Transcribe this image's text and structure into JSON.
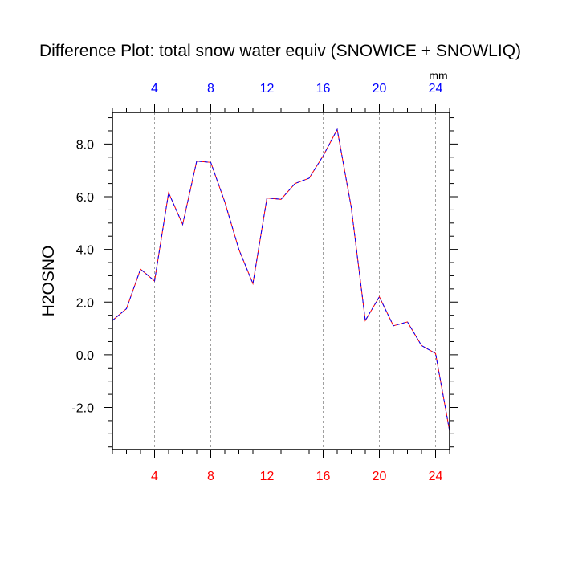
{
  "chart_data": {
    "type": "line",
    "title": "Difference Plot: total snow water equiv (SNOWICE + SNOWLIQ)",
    "xlabel": "",
    "ylabel": "H2OSNO",
    "units": "mm",
    "xlim": [
      1,
      25
    ],
    "ylim": [
      -3.6,
      9.2
    ],
    "x_ticks": [
      4,
      8,
      12,
      16,
      20,
      24
    ],
    "x_tick_labels": [
      "4",
      "8",
      "12",
      "16",
      "20",
      "24"
    ],
    "y_ticks": [
      -2,
      0,
      2,
      4,
      6,
      8
    ],
    "y_tick_labels": [
      "-2.0",
      "0.0",
      "2.0",
      "4.0",
      "6.0",
      "8.0"
    ],
    "grid": "vertical-dashed",
    "colors": {
      "top_ticks": "#0000ff",
      "bottom_ticks": "#ff0000",
      "line_a": "#ff0000",
      "line_b": "#0000ff"
    },
    "x": [
      1,
      2,
      3,
      4,
      5,
      6,
      7,
      8,
      9,
      10,
      11,
      12,
      13,
      14,
      15,
      16,
      17,
      18,
      19,
      20,
      21,
      22,
      23,
      24,
      25
    ],
    "series": [
      {
        "values": [
          1.3,
          1.75,
          3.25,
          2.8,
          6.15,
          4.95,
          7.35,
          7.3,
          5.8,
          4.0,
          2.7,
          5.95,
          5.9,
          6.5,
          6.7,
          7.55,
          8.55,
          5.6,
          1.3,
          2.2,
          1.1,
          1.25,
          0.35,
          0.05,
          -2.9
        ]
      }
    ]
  }
}
